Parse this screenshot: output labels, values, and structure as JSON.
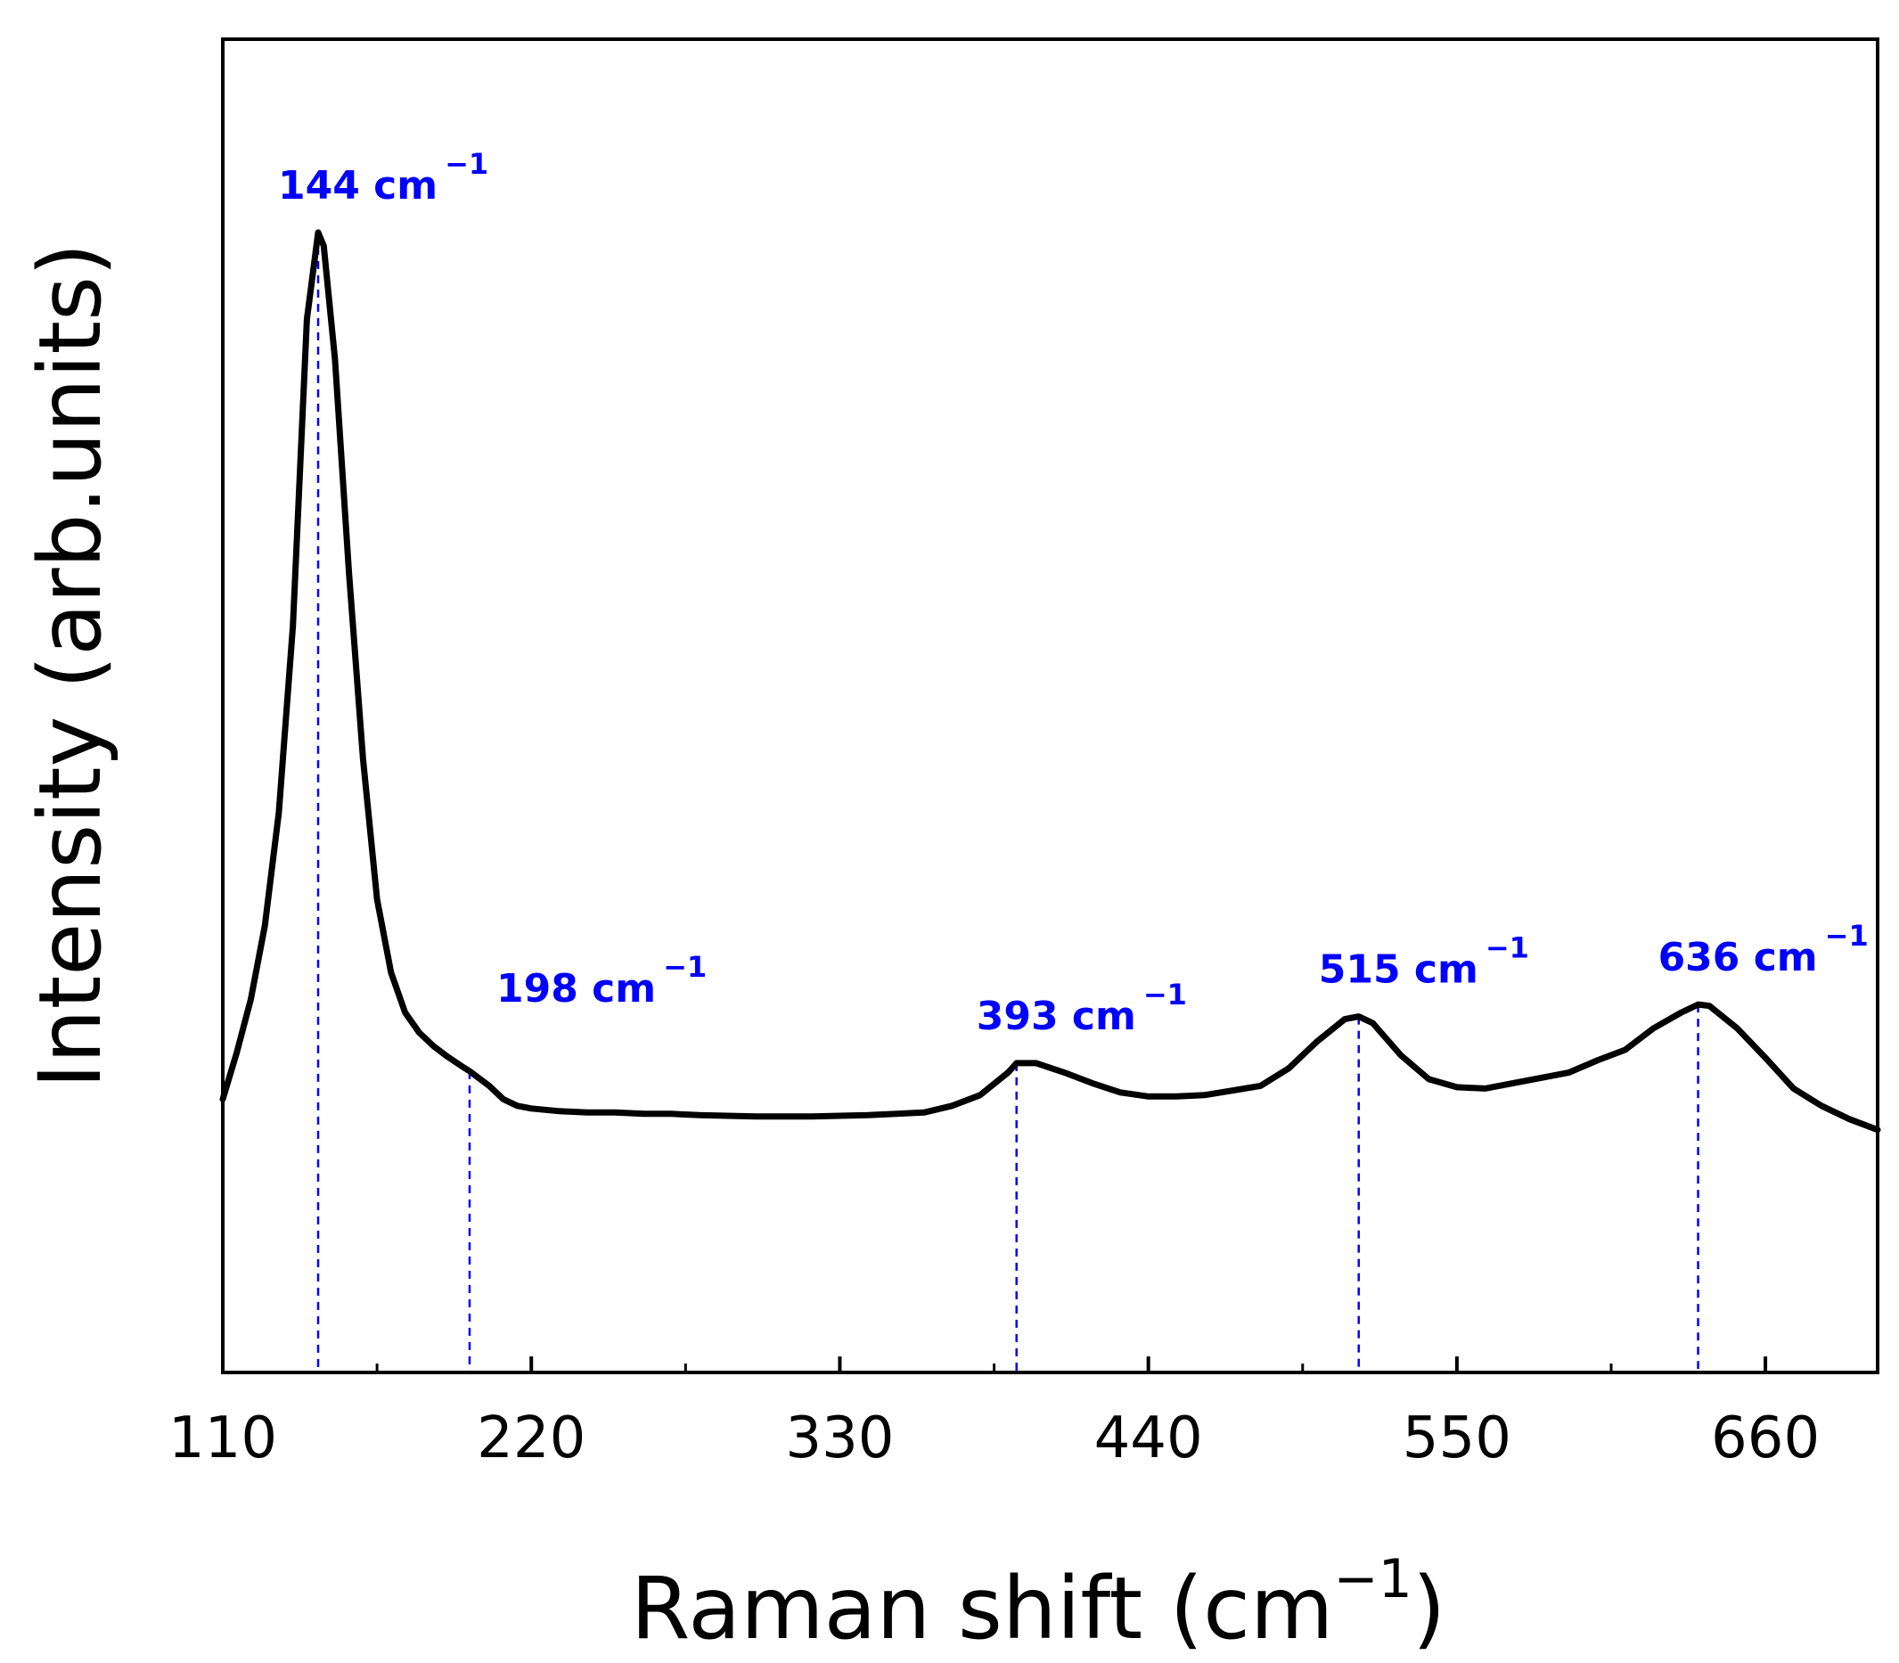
{
  "chart_data": {
    "type": "line",
    "title": "",
    "xlabel": "Raman shift (cm",
    "xlabel_sup": "−1",
    "xlabel_close": ")",
    "ylabel": "Intensity (arb.units)",
    "xlim": [
      110,
      700
    ],
    "ylim": [
      0,
      1.0
    ],
    "x_ticks": [
      110,
      220,
      330,
      440,
      550,
      660
    ],
    "x_minor_step": 36.67,
    "y_ticks_shown": false,
    "colors": {
      "line": "#000000",
      "annotation": "#0000ff"
    },
    "series": [
      {
        "name": "Raman spectrum",
        "x": [
          110,
          115,
          120,
          125,
          130,
          135,
          140,
          144,
          146,
          150,
          155,
          160,
          165,
          170,
          175,
          180,
          185,
          190,
          195,
          198,
          205,
          210,
          215,
          220,
          230,
          240,
          250,
          260,
          270,
          280,
          300,
          320,
          340,
          360,
          370,
          380,
          390,
          393,
          400,
          410,
          420,
          430,
          440,
          450,
          460,
          480,
          490,
          500,
          510,
          515,
          520,
          530,
          540,
          550,
          560,
          570,
          590,
          600,
          610,
          620,
          630,
          636,
          640,
          650,
          660,
          670,
          680,
          690,
          700
        ],
        "y": [
          0.205,
          0.24,
          0.28,
          0.335,
          0.42,
          0.56,
          0.79,
          0.855,
          0.845,
          0.76,
          0.6,
          0.46,
          0.355,
          0.3,
          0.27,
          0.255,
          0.245,
          0.237,
          0.23,
          0.226,
          0.215,
          0.205,
          0.2,
          0.198,
          0.196,
          0.195,
          0.195,
          0.194,
          0.194,
          0.193,
          0.192,
          0.192,
          0.193,
          0.195,
          0.2,
          0.208,
          0.225,
          0.232,
          0.232,
          0.225,
          0.217,
          0.21,
          0.207,
          0.207,
          0.208,
          0.215,
          0.228,
          0.248,
          0.265,
          0.267,
          0.262,
          0.238,
          0.22,
          0.214,
          0.213,
          0.217,
          0.225,
          0.234,
          0.242,
          0.258,
          0.27,
          0.276,
          0.275,
          0.258,
          0.236,
          0.213,
          0.2,
          0.19,
          0.182
        ]
      }
    ],
    "annotations": [
      {
        "x": 144,
        "label": "144 cm",
        "sup": "−1"
      },
      {
        "x": 198,
        "label": "198 cm",
        "sup": "−1"
      },
      {
        "x": 393,
        "label": "393 cm",
        "sup": "−1"
      },
      {
        "x": 515,
        "label": "515 cm",
        "sup": "−1"
      },
      {
        "x": 636,
        "label": "636 cm",
        "sup": "−1"
      }
    ]
  }
}
